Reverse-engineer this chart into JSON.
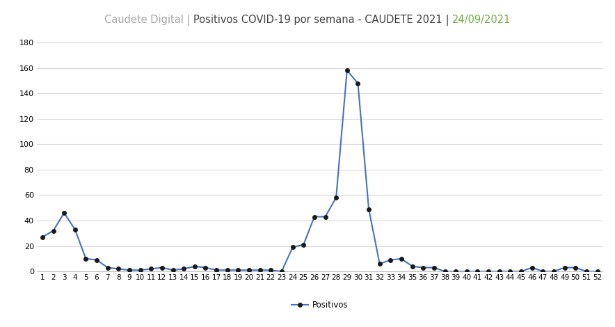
{
  "title_left": "Caudete Digital",
  "title_sep": " | ",
  "title_main": "Positivos COVID-19 por semana - CAUDETE 2021",
  "title_date_sep": " | ",
  "title_date": "24/09/2021",
  "x_values": [
    1,
    2,
    3,
    4,
    5,
    6,
    7,
    8,
    9,
    10,
    11,
    12,
    13,
    14,
    15,
    16,
    17,
    18,
    19,
    20,
    21,
    22,
    23,
    24,
    25,
    26,
    27,
    28,
    29,
    30,
    31,
    32,
    33,
    34,
    35,
    36,
    37,
    38,
    39,
    40,
    41,
    42,
    43,
    44,
    45,
    46,
    47,
    48,
    49,
    50,
    51,
    52
  ],
  "y_values": [
    27,
    32,
    46,
    33,
    10,
    9,
    3,
    2,
    1,
    1,
    2,
    3,
    1,
    2,
    4,
    3,
    1,
    1,
    1,
    1,
    1,
    1,
    0,
    19,
    21,
    43,
    43,
    58,
    158,
    148,
    49,
    6,
    9,
    10,
    4,
    3,
    3,
    0,
    0,
    0,
    0,
    0,
    0,
    0,
    0,
    3,
    0,
    0,
    3,
    3,
    0,
    0
  ],
  "line_color": "#4472C4",
  "marker_color": "#1a1a1a",
  "background_color": "#ffffff",
  "ylim": [
    0,
    180
  ],
  "yticks": [
    0,
    20,
    40,
    60,
    80,
    100,
    120,
    140,
    160,
    180
  ],
  "legend_label": "Positivos",
  "title_left_color": "#a5a5a5",
  "title_main_color": "#404040",
  "title_date_color": "#70AD47",
  "grid_color": "#d9d9d9",
  "title_fontsize": 10.5,
  "tick_fontsize": 7.5,
  "ytick_fontsize": 8.0
}
